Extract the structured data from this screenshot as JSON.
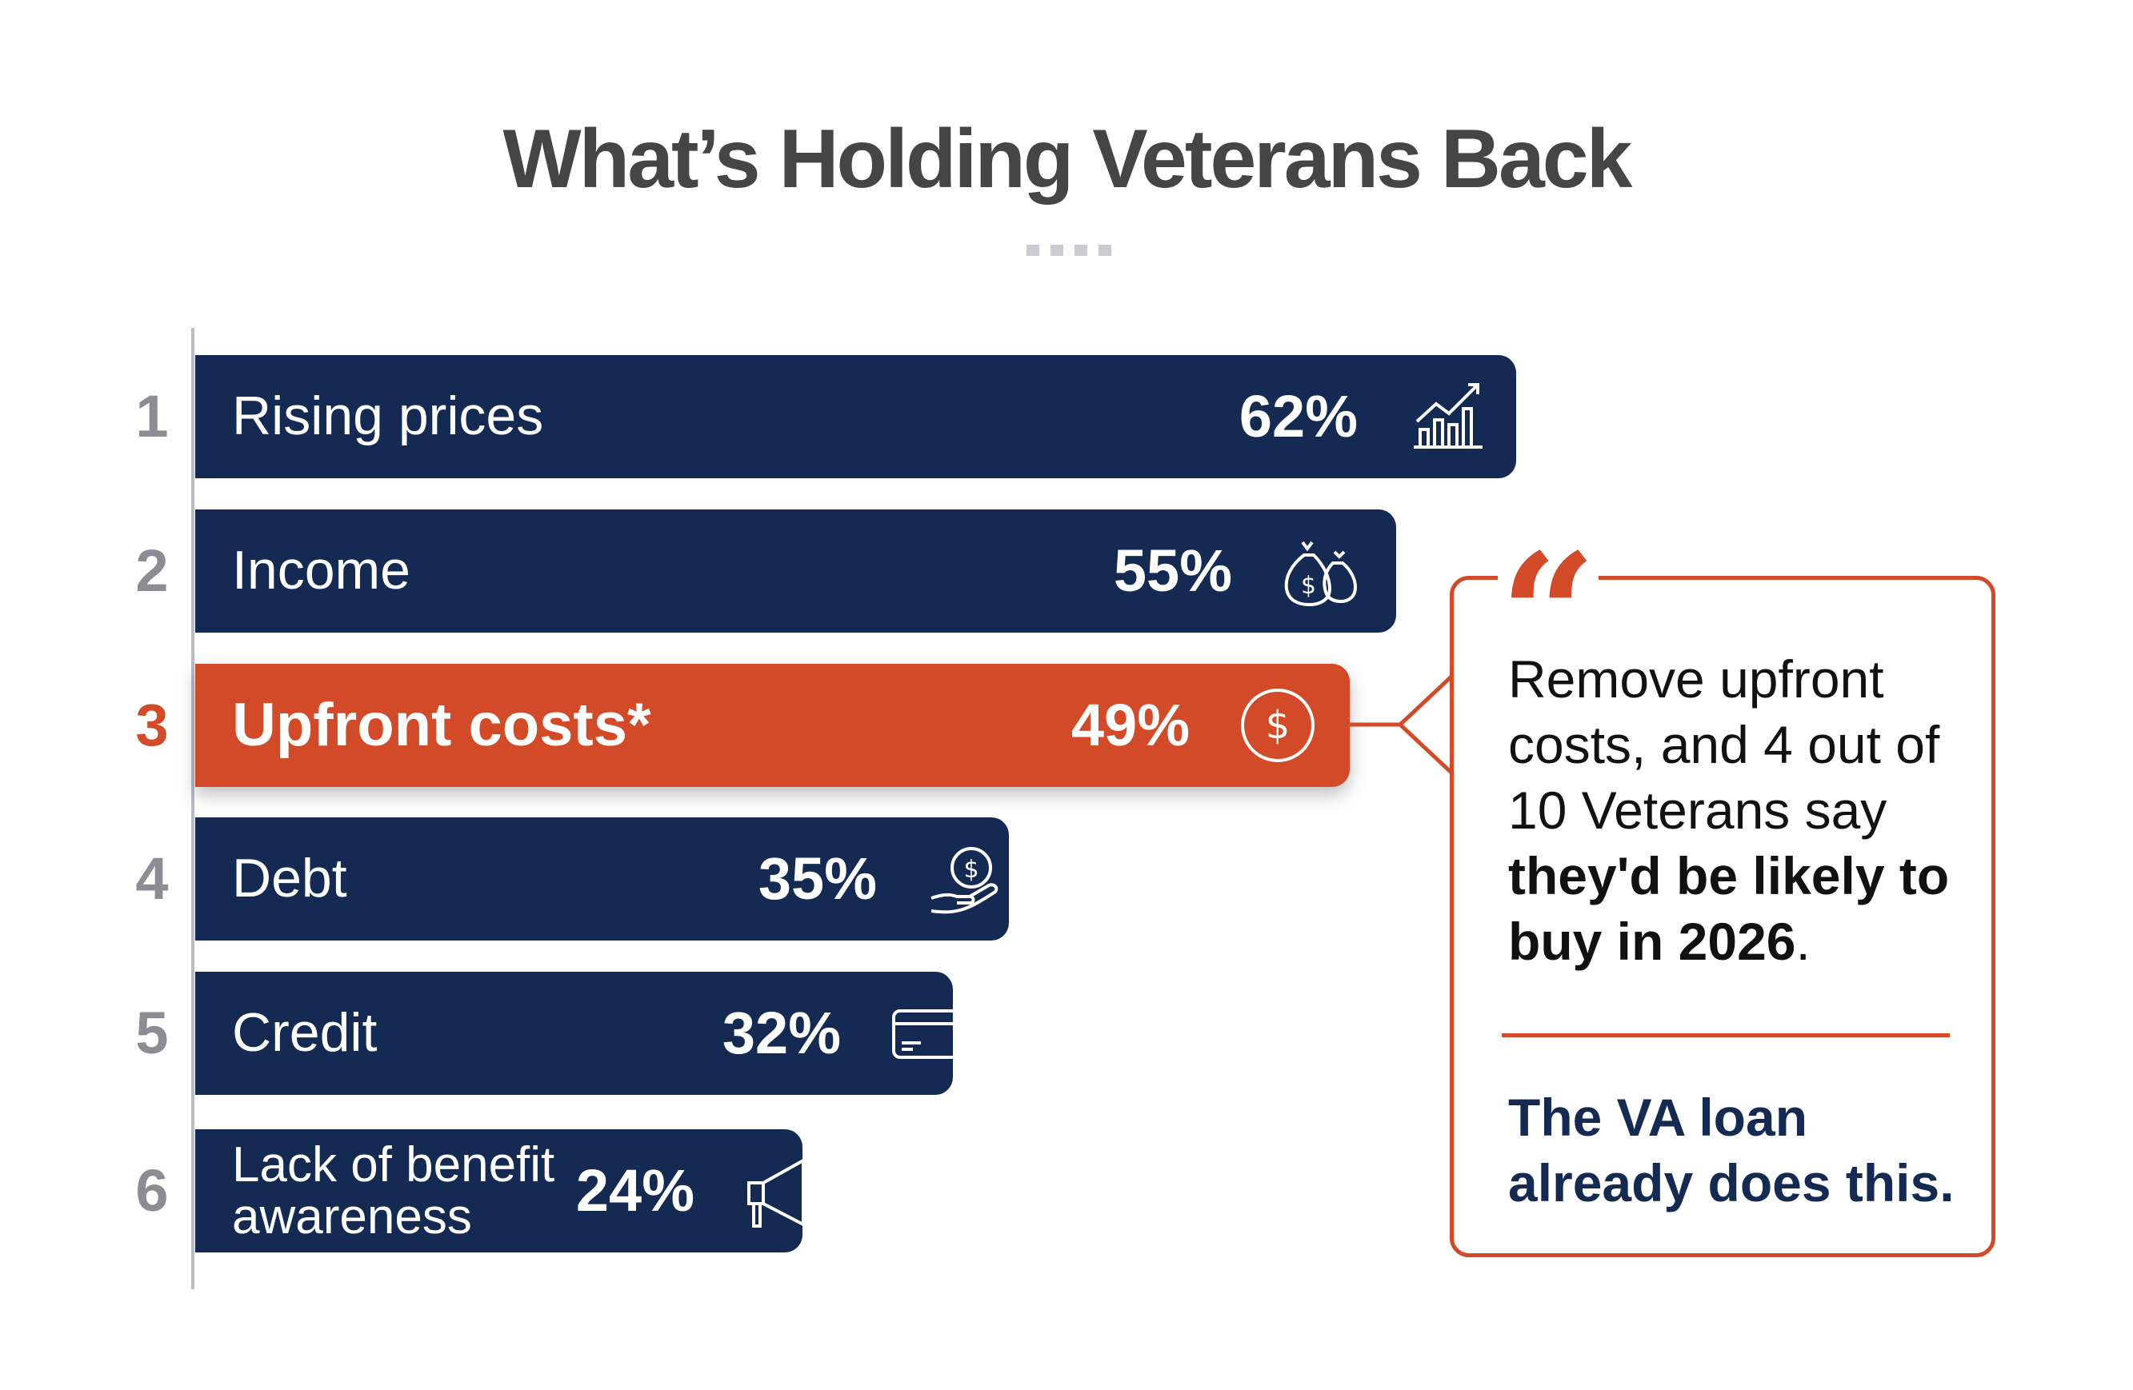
{
  "chart_data": {
    "type": "bar",
    "orientation": "horizontal",
    "title": "What’s Holding Veterans Back",
    "categories": [
      "Rising prices",
      "Income",
      "Upfront costs*",
      "Debt",
      "Credit",
      "Lack of benefit awareness"
    ],
    "ranks": [
      "1",
      "2",
      "3",
      "4",
      "5",
      "6"
    ],
    "values": [
      62,
      55,
      49,
      35,
      32,
      24
    ],
    "value_labels": [
      "62%",
      "55%",
      "49%",
      "35%",
      "32%",
      "24%"
    ],
    "icons": [
      "chart-growth-icon",
      "money-bags-icon",
      "dollar-circle-icon",
      "hand-coin-icon",
      "credit-card-icon",
      "megaphone-icon"
    ],
    "highlighted_index": 2,
    "colors": {
      "bar": "#142a52",
      "highlight": "#d24a27",
      "title": "#454545",
      "rank": "#8a8d93"
    }
  },
  "callout": {
    "quote_mark": "“",
    "text_regular": "Remove upfront costs, and 4 out of 10 Veterans say ",
    "text_bold": "they'd be likely to buy in 2026",
    "text_end": ".",
    "footer": "The VA loan already does this."
  }
}
